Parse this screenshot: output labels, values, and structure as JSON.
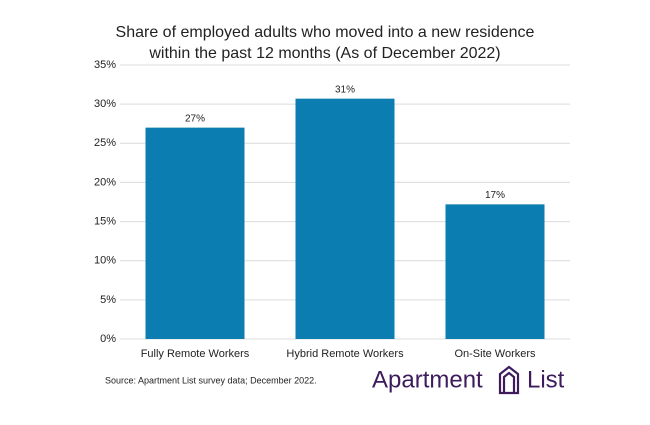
{
  "chart_data": {
    "type": "bar",
    "title": "Share of employed adults who moved into a new residence within the past 12 months (As of December 2022)",
    "categories": [
      "Fully Remote Workers",
      "Hybrid Remote Workers",
      "On-Site Workers"
    ],
    "values": [
      27,
      30.7,
      17.2
    ],
    "value_labels": [
      "27%",
      "31%",
      "17%"
    ],
    "color": "#0b7db1",
    "ylim": [
      0,
      35
    ],
    "yticks": [
      {
        "value": 0,
        "label": "0%"
      },
      {
        "value": 5,
        "label": "5%"
      },
      {
        "value": 10,
        "label": "10%"
      },
      {
        "value": 15,
        "label": "15%"
      },
      {
        "value": 20,
        "label": "20%"
      },
      {
        "value": 25,
        "label": "25%"
      },
      {
        "value": 30,
        "label": "30%"
      },
      {
        "value": 35,
        "label": "35%"
      }
    ],
    "grid": true,
    "source": "Source: Apartment List survey data; December 2022.",
    "logo": [
      "Apartment",
      "List"
    ]
  }
}
